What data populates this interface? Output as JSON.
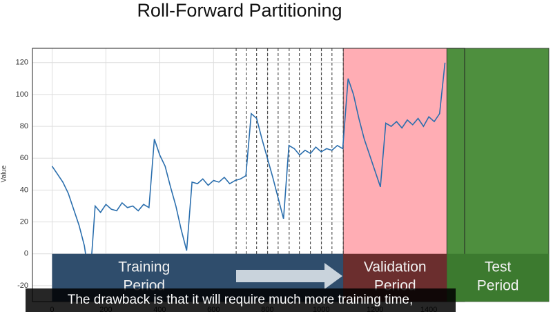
{
  "chart_data": {
    "type": "line",
    "title": "Roll-Forward Partitioning",
    "ylabel": "Value",
    "caption": "The drawback is that it will require much more training time,",
    "xlim": [
      -73,
      1533
    ],
    "ylim": [
      -30,
      129
    ],
    "xticks": [
      0,
      200,
      400,
      600,
      800,
      1000,
      1200,
      1400
    ],
    "yticks": [
      -20,
      0,
      20,
      40,
      60,
      80,
      100,
      120
    ],
    "grid": true,
    "split_lines": [
      684,
      722,
      760,
      801,
      840,
      881,
      919,
      960,
      1001,
      1040,
      1082
    ],
    "regions": [
      {
        "start": 1082,
        "end": 1467,
        "color": "#ffadb4"
      },
      {
        "start": 1467,
        "end": 1846,
        "color": "#4e8f3e"
      }
    ],
    "bands": [
      {
        "label": [
          "Training",
          "Period"
        ],
        "start": 0,
        "end": 1082,
        "color": "#2f4d6c"
      },
      {
        "label": [
          "Validation",
          "Period"
        ],
        "start": 1082,
        "end": 1467,
        "color": "#6b2e2e"
      },
      {
        "label": [
          "Test",
          "Period"
        ],
        "start": 1467,
        "end": 1846,
        "color": "#3c7a2f"
      }
    ],
    "x": [
      0,
      20,
      40,
      60,
      80,
      100,
      120,
      140,
      160,
      180,
      200,
      220,
      240,
      260,
      280,
      300,
      320,
      340,
      360,
      380,
      400,
      420,
      440,
      460,
      480,
      500,
      520,
      540,
      560,
      580,
      600,
      620,
      640,
      660,
      680,
      700,
      720,
      740,
      760,
      780,
      800,
      820,
      840,
      860,
      880,
      900,
      920,
      940,
      960,
      980,
      1000,
      1020,
      1040,
      1060,
      1080,
      1100,
      1120,
      1140,
      1160,
      1180,
      1200,
      1220,
      1240,
      1260,
      1280,
      1300,
      1320,
      1340,
      1360,
      1380,
      1400,
      1420,
      1440,
      1460
    ],
    "series": [
      {
        "color": "#2a6ead",
        "values": [
          55,
          50,
          45,
          38,
          28,
          18,
          5,
          -18,
          30,
          26,
          31,
          28,
          27,
          32,
          29,
          30,
          27,
          31,
          29,
          72,
          62,
          55,
          42,
          30,
          15,
          2,
          45,
          44,
          47,
          43,
          46,
          45,
          48,
          44,
          46,
          47,
          49,
          88,
          85,
          72,
          60,
          48,
          35,
          22,
          68,
          66,
          62,
          65,
          63,
          67,
          64,
          66,
          65,
          68,
          66,
          110,
          100,
          85,
          72,
          62,
          52,
          42,
          82,
          80,
          83,
          79,
          84,
          81,
          85,
          80,
          86,
          83,
          88,
          120
        ]
      }
    ]
  }
}
